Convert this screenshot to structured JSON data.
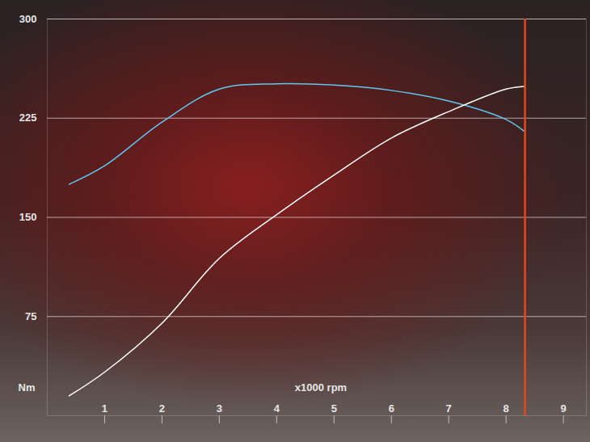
{
  "chart_data": {
    "type": "line",
    "x_label": "x1000 rpm",
    "y_label": "Nm",
    "x": [
      0.38,
      1,
      2,
      3,
      4,
      5,
      6,
      7,
      8,
      8.32
    ],
    "series": [
      {
        "color": "#5ec8ee",
        "values": [
          175,
          189,
          222,
          247,
          251,
          250,
          246,
          238,
          224,
          215
        ]
      },
      {
        "color": "#ffffff",
        "values": [
          15,
          33,
          70,
          119,
          152,
          182,
          210,
          230,
          247,
          249
        ]
      }
    ],
    "xlim": [
      0,
      9.4
    ],
    "xticks": [
      1,
      2,
      3,
      4,
      5,
      6,
      7,
      8,
      9
    ],
    "ylim": [
      0,
      300
    ],
    "yticks": [
      75,
      150,
      225,
      300
    ],
    "grid": true,
    "vlines": [
      {
        "x": 8.33,
        "color": "#e8461e"
      }
    ]
  }
}
